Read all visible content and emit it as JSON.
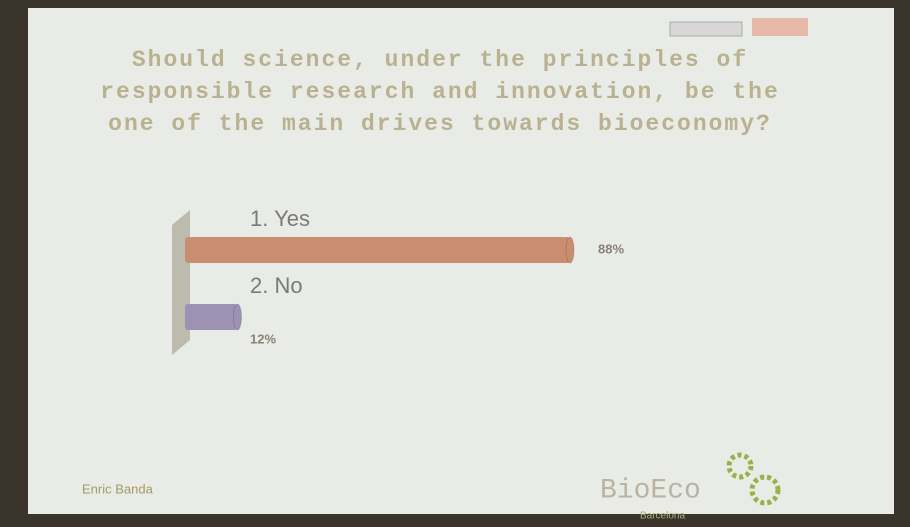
{
  "chart_data": {
    "type": "bar",
    "orientation": "horizontal",
    "title": "Should science, under the principles of responsible research and innovation, be the one of the main drives towards bioeconomy?",
    "categories": [
      "1. Yes",
      "2. No"
    ],
    "values": [
      88,
      12
    ],
    "value_labels": [
      "88%",
      "12%"
    ],
    "colors": [
      "#c98d70",
      "#9c93b4"
    ],
    "xlim": [
      0,
      100
    ]
  },
  "footer": {
    "presenter": "Enric Banda",
    "logo": "BioEco",
    "logo_subtitle": "Barcelona"
  }
}
